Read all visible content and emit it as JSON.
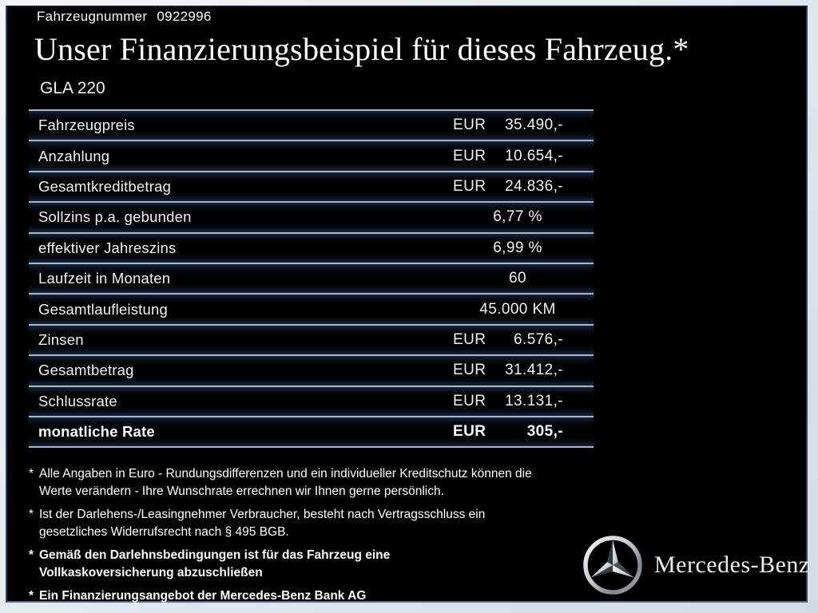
{
  "header": {
    "vehicle_number_label": "Fahrzeugnummer",
    "vehicle_number": "0922996",
    "title": "Unser Finanzierungsbeispiel für dieses Fahrzeug.*",
    "model": "GLA 220"
  },
  "table": {
    "rows": [
      {
        "label": "Fahrzeugpreis",
        "currency": "EUR",
        "amount": "35.490,-"
      },
      {
        "label": "Anzahlung",
        "currency": "EUR",
        "amount": "10.654,-"
      },
      {
        "label": "Gesamtkreditbetrag",
        "currency": "EUR",
        "amount": "24.836,-"
      },
      {
        "label": "Sollzins p.a. gebunden",
        "value": "6,77 %"
      },
      {
        "label": "effektiver Jahreszins",
        "value": "6,99 %"
      },
      {
        "label": "Laufzeit in Monaten",
        "value": "60"
      },
      {
        "label": "Gesamtlaufleistung",
        "value": "45.000 KM"
      },
      {
        "label": "Zinsen",
        "currency": "EUR",
        "amount": "6.576,-"
      },
      {
        "label": "Gesamtbetrag",
        "currency": "EUR",
        "amount": "31.412,-"
      },
      {
        "label": "Schlussrate",
        "currency": "EUR",
        "amount": "13.131,-"
      },
      {
        "label": "monatliche Rate",
        "currency": "EUR",
        "amount": "305,-",
        "emphasis": true
      }
    ]
  },
  "footnotes": [
    {
      "marker": "*",
      "bold": false,
      "lines": [
        "Alle Angaben in Euro - Rundungsdifferenzen und ein individueller Kreditschutz können die",
        "Werte verändern - Ihre Wunschrate errechnen wir Ihnen gerne persönlich."
      ]
    },
    {
      "marker": "*",
      "bold": false,
      "lines": [
        "Ist der Darlehens-/Leasingnehmer Verbraucher, besteht nach Vertragsschluss ein",
        "gesetzliches Widerrufsrecht nach § 495 BGB."
      ]
    },
    {
      "marker": "*",
      "bold": true,
      "lines": [
        "Gemäß den Darlehnsbedingungen ist für das Fahrzeug eine",
        "Vollkaskoversicherung abzuschließen"
      ]
    },
    {
      "marker": "*",
      "bold": true,
      "lines": [
        "Ein Finanzierungsangebot der Mercedes-Benz Bank AG"
      ]
    }
  ],
  "brand": {
    "logotype": "Mercedes-Benz",
    "star_icon": "mercedes-star-icon"
  },
  "colors": {
    "background": "#000000",
    "frame": "#dde3ec",
    "separator": "#aab7c5",
    "text": "#f5f5f5"
  }
}
